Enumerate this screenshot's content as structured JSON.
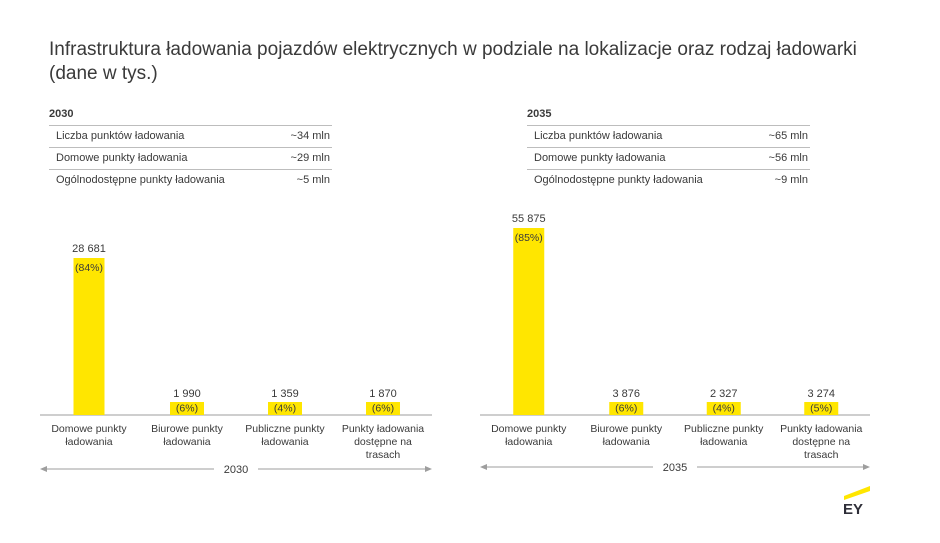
{
  "title": "Infrastruktura ładowania pojazdów elektrycznych w podziale na lokalizacje oraz rodzaj ładowarki (dane w tys.)",
  "summary": [
    {
      "year": "2030",
      "rows": [
        {
          "label": "Liczba punktów ładowania",
          "value": "~34 mln"
        },
        {
          "label": "Domowe punkty ładowania",
          "value": "~29 mln"
        },
        {
          "label": "Ogólnodostępne punkty ładowania",
          "value": "~5 mln"
        }
      ]
    },
    {
      "year": "2035",
      "rows": [
        {
          "label": "Liczba punktów ładowania",
          "value": "~65 mln"
        },
        {
          "label": "Domowe punkty ładowania",
          "value": "~56 mln"
        },
        {
          "label": "Ogólnodostępne punkty ładowania",
          "value": "~9 mln"
        }
      ]
    }
  ],
  "chart_data": [
    {
      "type": "bar",
      "xlabel": "2030",
      "categories": [
        "Domowe punkty ładowania",
        "Biurowe punkty ładowania",
        "Publiczne punkty ładowania",
        "Punkty ładowania dostępne na trasach"
      ],
      "values": [
        28681,
        1990,
        1359,
        1870
      ],
      "value_labels": [
        "28 681",
        "1 990",
        "1 359",
        "1 870"
      ],
      "percent_labels": [
        "(84%)",
        "(6%)",
        "(4%)",
        "(6%)"
      ]
    },
    {
      "type": "bar",
      "xlabel": "2035",
      "categories": [
        "Domowe punkty ładowania",
        "Biurowe punkty ładowania",
        "Publiczne punkty ładowania",
        "Punkty ładowania dostępne na trasach"
      ],
      "values": [
        55875,
        3876,
        2327,
        3274
      ],
      "value_labels": [
        "55 875",
        "3 876",
        "2 327",
        "3 274"
      ],
      "percent_labels": [
        "(85%)",
        "(6%)",
        "(4%)",
        "(5%)"
      ]
    }
  ],
  "colors": {
    "bar": "#ffe600",
    "text": "#3a3a3a",
    "axis": "#9e9e9e"
  },
  "logo": {
    "text": "EY",
    "icon": "ey-logo-icon"
  }
}
